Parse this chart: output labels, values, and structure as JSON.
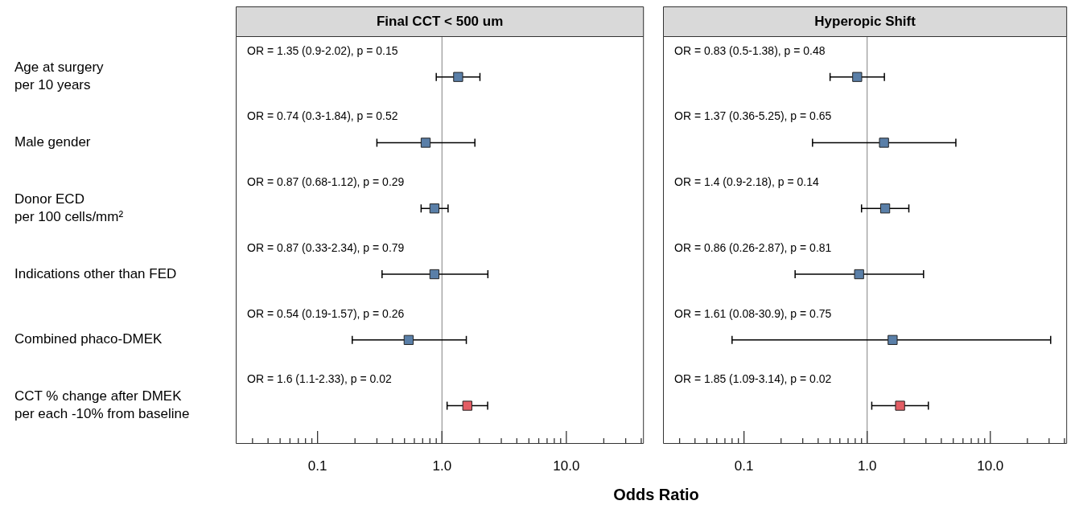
{
  "chart_data": [
    {
      "type": "scatter",
      "orientation": "horizontal",
      "title": "Final CCT < 500 um",
      "xlabel": "Odds Ratio",
      "categories": [
        "Age at surgery\nper 10 years",
        "Male gender",
        "Donor ECD\nper 100 cells/mm²",
        "Indications other than FED",
        "Combined phaco-DMEK",
        "CCT % change after DMEK\nper each -10% from baseline"
      ],
      "values": [
        1.35,
        0.74,
        0.87,
        0.87,
        0.54,
        1.6
      ],
      "errors": [
        [
          0.9,
          2.02
        ],
        [
          0.3,
          1.84
        ],
        [
          0.68,
          1.12
        ],
        [
          0.33,
          2.34
        ],
        [
          0.19,
          1.57
        ],
        [
          1.1,
          2.33
        ]
      ],
      "annotations": [
        "OR = 1.35 (0.9-2.02), p = 0.15",
        "OR = 0.74 (0.3-1.84), p = 0.52",
        "OR = 0.87 (0.68-1.12), p = 0.29",
        "OR = 0.87 (0.33-2.34), p = 0.79",
        "OR = 0.54 (0.19-1.57), p = 0.26",
        "OR = 1.6 (1.1-2.33), p = 0.02"
      ],
      "colors": [
        "#5a7fa8",
        "#5a7fa8",
        "#5a7fa8",
        "#5a7fa8",
        "#5a7fa8",
        "#e35d64"
      ],
      "marker": "square",
      "log": "x",
      "xlim": [
        0.022,
        42
      ],
      "xticks": [
        {
          "value": 0.03,
          "label": null
        },
        {
          "value": 0.04,
          "label": null
        },
        {
          "value": 0.05,
          "label": null
        },
        {
          "value": 0.06,
          "label": null
        },
        {
          "value": 0.07,
          "label": null
        },
        {
          "value": 0.08,
          "label": null
        },
        {
          "value": 0.09,
          "label": null
        },
        {
          "value": 0.1,
          "label": "0.1"
        },
        {
          "value": 0.2,
          "label": null
        },
        {
          "value": 0.3,
          "label": null
        },
        {
          "value": 0.4,
          "label": null
        },
        {
          "value": 0.5,
          "label": null
        },
        {
          "value": 0.6,
          "label": null
        },
        {
          "value": 0.7,
          "label": null
        },
        {
          "value": 0.8,
          "label": null
        },
        {
          "value": 0.9,
          "label": null
        },
        {
          "value": 1,
          "label": "1.0"
        },
        {
          "value": 2,
          "label": null
        },
        {
          "value": 3,
          "label": null
        },
        {
          "value": 4,
          "label": null
        },
        {
          "value": 5,
          "label": null
        },
        {
          "value": 6,
          "label": null
        },
        {
          "value": 7,
          "label": null
        },
        {
          "value": 8,
          "label": null
        },
        {
          "value": 9,
          "label": null
        },
        {
          "value": 10,
          "label": "10.0"
        },
        {
          "value": 20,
          "label": null
        },
        {
          "value": 30,
          "label": null
        },
        {
          "value": 40,
          "label": null
        }
      ],
      "ref_lines": [
        {
          "axis": "x",
          "value": 1,
          "color": "#808080"
        }
      ]
    },
    {
      "type": "scatter",
      "orientation": "horizontal",
      "title": "Hyperopic Shift",
      "tick_labels": "x",
      "categories": [
        null,
        null,
        null,
        null,
        null,
        null
      ],
      "values": [
        0.83,
        1.37,
        1.4,
        0.86,
        1.61,
        1.85
      ],
      "errors": [
        [
          0.5,
          1.38
        ],
        [
          0.36,
          5.25
        ],
        [
          0.9,
          2.18
        ],
        [
          0.26,
          2.87
        ],
        [
          0.08,
          30.9
        ],
        [
          1.09,
          3.14
        ]
      ],
      "annotations": [
        "OR = 0.83 (0.5-1.38), p = 0.48",
        "OR = 1.37 (0.36-5.25), p = 0.65",
        "OR = 1.4 (0.9-2.18), p = 0.14",
        "OR = 0.86 (0.26-2.87), p = 0.81",
        "OR = 1.61 (0.08-30.9), p = 0.75",
        "OR = 1.85 (1.09-3.14), p = 0.02"
      ],
      "colors": [
        "#5a7fa8",
        "#5a7fa8",
        "#5a7fa8",
        "#5a7fa8",
        "#5a7fa8",
        "#e35d64"
      ],
      "marker": "square",
      "log": "x",
      "xlim": [
        0.022,
        42
      ],
      "xticks": [
        {
          "value": 0.03,
          "label": null
        },
        {
          "value": 0.04,
          "label": null
        },
        {
          "value": 0.05,
          "label": null
        },
        {
          "value": 0.06,
          "label": null
        },
        {
          "value": 0.07,
          "label": null
        },
        {
          "value": 0.08,
          "label": null
        },
        {
          "value": 0.09,
          "label": null
        },
        {
          "value": 0.1,
          "label": "0.1"
        },
        {
          "value": 0.2,
          "label": null
        },
        {
          "value": 0.3,
          "label": null
        },
        {
          "value": 0.4,
          "label": null
        },
        {
          "value": 0.5,
          "label": null
        },
        {
          "value": 0.6,
          "label": null
        },
        {
          "value": 0.7,
          "label": null
        },
        {
          "value": 0.8,
          "label": null
        },
        {
          "value": 0.9,
          "label": null
        },
        {
          "value": 1,
          "label": "1.0"
        },
        {
          "value": 2,
          "label": null
        },
        {
          "value": 3,
          "label": null
        },
        {
          "value": 4,
          "label": null
        },
        {
          "value": 5,
          "label": null
        },
        {
          "value": 6,
          "label": null
        },
        {
          "value": 7,
          "label": null
        },
        {
          "value": 8,
          "label": null
        },
        {
          "value": 9,
          "label": null
        },
        {
          "value": 10,
          "label": "10.0"
        },
        {
          "value": 20,
          "label": null
        },
        {
          "value": 30,
          "label": null
        },
        {
          "value": 40,
          "label": null
        }
      ],
      "ref_lines": [
        {
          "axis": "x",
          "value": 1,
          "color": "#808080"
        }
      ]
    }
  ]
}
